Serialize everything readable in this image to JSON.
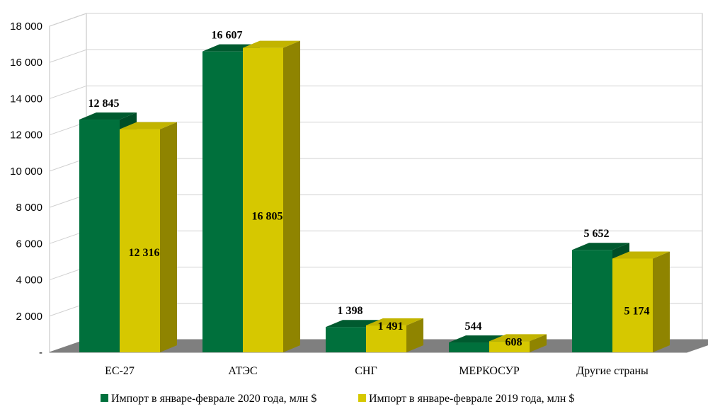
{
  "chart_data": {
    "type": "bar",
    "title": "",
    "xlabel": "",
    "ylabel": "",
    "ylim": [
      0,
      18000
    ],
    "yticks": [
      0,
      2000,
      4000,
      6000,
      8000,
      10000,
      12000,
      14000,
      16000,
      18000
    ],
    "ytick_labels": [
      "-",
      "2 000",
      "4 000",
      "6 000",
      "8 000",
      "10 000",
      "12 000",
      "14 000",
      "16 000",
      "18 000"
    ],
    "categories": [
      "ЕС-27",
      "АТЭС",
      "СНГ",
      "МЕРКОСУР",
      "Другие страны"
    ],
    "series": [
      {
        "name": "Импорт в январе-феврале 2020 года, млн $",
        "values": [
          12845,
          16607,
          1398,
          544,
          5652
        ],
        "labels": [
          "12 845",
          "16 607",
          "1 398",
          "544",
          "5 652"
        ],
        "color": "#00703c",
        "top_color": "#005a2f",
        "side_color": "#004d27"
      },
      {
        "name": "Импорт в январе-феврале 2019 года, млн $",
        "values": [
          12316,
          16805,
          1491,
          608,
          5174
        ],
        "labels": [
          "12 316",
          "16 805",
          "1 491",
          "608",
          "5 174"
        ],
        "color": "#d6c800",
        "top_color": "#c2b400",
        "side_color": "#8f8400"
      }
    ],
    "grid": true,
    "legend_position": "bottom",
    "three_d": true
  }
}
